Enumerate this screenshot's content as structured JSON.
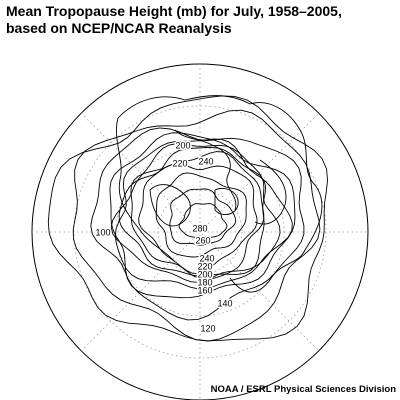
{
  "header": {
    "title_line1": "Mean Tropopause Height (mb) for July, 1958–2005,",
    "title_line2": "based on NCEP/NCAR Reanalysis"
  },
  "map": {
    "contour_labels": [
      "200",
      "220",
      "240",
      "280",
      "260",
      "240",
      "220",
      "200",
      "180",
      "160",
      "140",
      "120",
      "100"
    ]
  },
  "footer": {
    "credit": "NOAA / ESRL Physical Sciences Division"
  }
}
